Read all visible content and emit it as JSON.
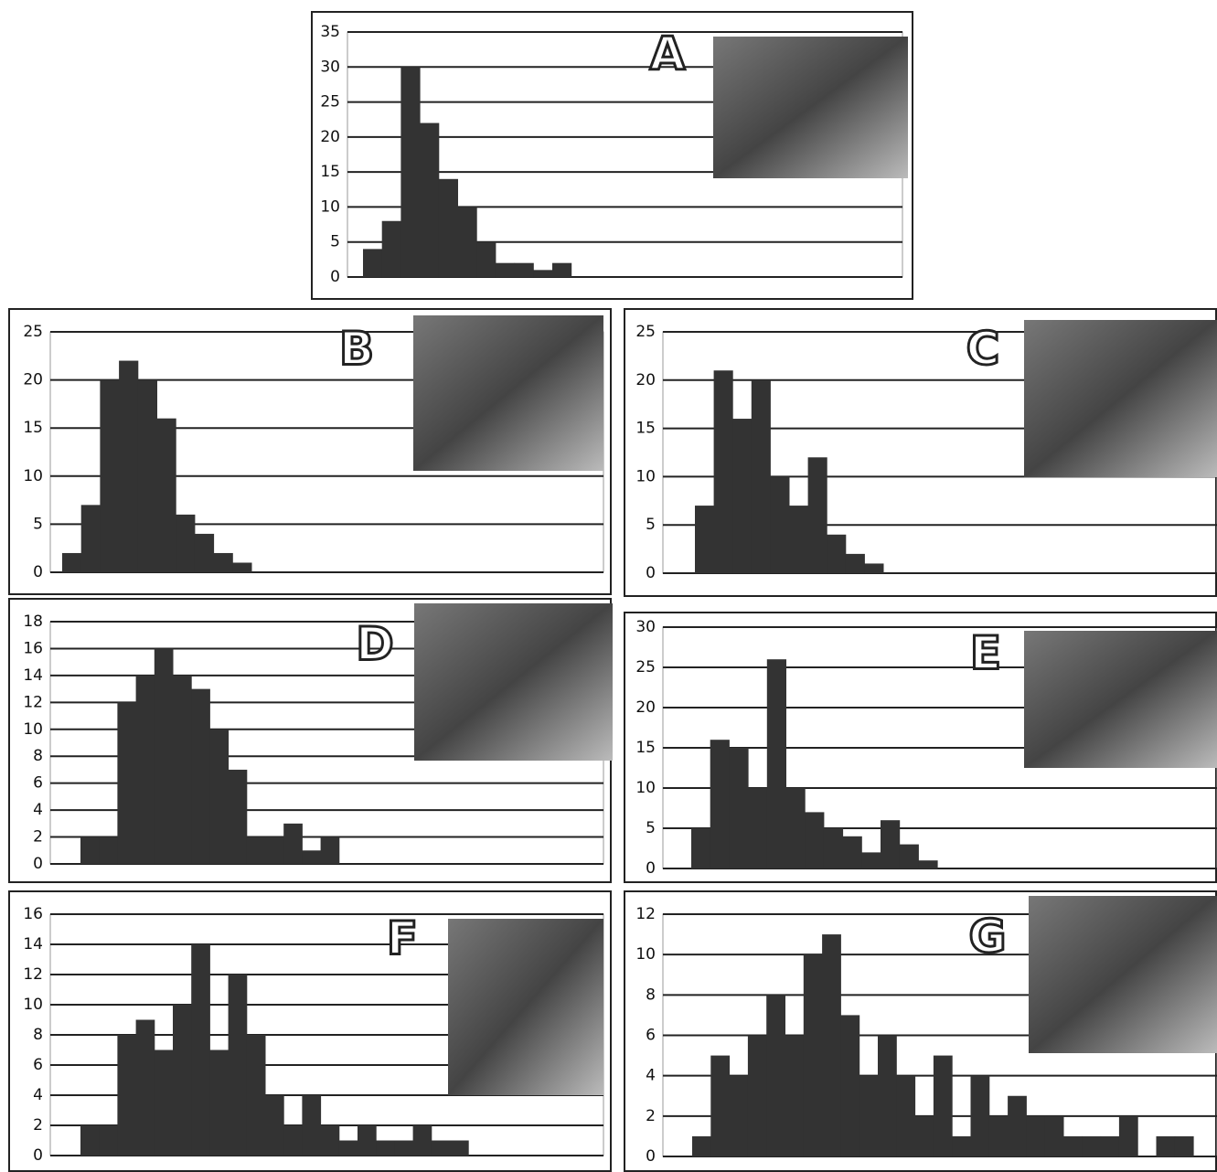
{
  "chart_data": [
    {
      "type": "bar",
      "title": "A",
      "color": "#333333",
      "grid": true,
      "categories": [
        null,
        null,
        null,
        null,
        null,
        null,
        null,
        null,
        null,
        null,
        null
      ],
      "values": [
        4,
        8,
        30,
        22,
        14,
        10,
        5,
        2,
        2,
        1,
        2
      ],
      "ylim": [
        0,
        35
      ],
      "yticks": [
        0,
        5,
        10,
        15,
        20,
        25,
        30,
        35
      ]
    },
    {
      "type": "bar",
      "title": "B",
      "color": "#333333",
      "grid": true,
      "categories": [
        null,
        null,
        null,
        null,
        null,
        null,
        null,
        null,
        null,
        null
      ],
      "values": [
        2,
        7,
        20,
        22,
        20,
        16,
        6,
        4,
        2,
        1
      ],
      "ylim": [
        0,
        25
      ],
      "yticks": [
        0,
        5,
        10,
        15,
        20,
        25
      ]
    },
    {
      "type": "bar",
      "title": "C",
      "color": "#333333",
      "grid": true,
      "categories": [
        null,
        null,
        null,
        null,
        null,
        null,
        null,
        null,
        null,
        null
      ],
      "values": [
        7,
        21,
        16,
        20,
        10,
        7,
        12,
        4,
        2,
        1
      ],
      "ylim": [
        0,
        25
      ],
      "yticks": [
        0,
        5,
        10,
        15,
        20,
        25
      ]
    },
    {
      "type": "bar",
      "title": "D",
      "color": "#333333",
      "grid": true,
      "categories": [
        null,
        null,
        null,
        null,
        null,
        null,
        null,
        null,
        null,
        null,
        null,
        null,
        null,
        null
      ],
      "values": [
        2,
        2,
        12,
        14,
        16,
        14,
        13,
        10,
        7,
        2,
        2,
        3,
        1,
        2
      ],
      "ylim": [
        0,
        18
      ],
      "yticks": [
        0,
        2,
        4,
        6,
        8,
        10,
        12,
        14,
        16,
        18
      ]
    },
    {
      "type": "bar",
      "title": "E",
      "color": "#333333",
      "grid": true,
      "categories": [
        null,
        null,
        null,
        null,
        null,
        null,
        null,
        null,
        null,
        null,
        null,
        null,
        null
      ],
      "values": [
        5,
        16,
        15,
        10,
        26,
        10,
        7,
        5,
        4,
        2,
        6,
        3,
        1
      ],
      "ylim": [
        0,
        30
      ],
      "yticks": [
        0,
        5,
        10,
        15,
        20,
        25,
        30
      ]
    },
    {
      "type": "bar",
      "title": "F",
      "color": "#333333",
      "grid": true,
      "categories": [
        null,
        null,
        null,
        null,
        null,
        null,
        null,
        null,
        null,
        null,
        null,
        null,
        null,
        null,
        null,
        null,
        null,
        null,
        null,
        null,
        null
      ],
      "values": [
        2,
        2,
        8,
        9,
        7,
        10,
        14,
        7,
        12,
        8,
        4,
        2,
        4,
        2,
        1,
        2,
        1,
        1,
        2,
        1,
        1
      ],
      "ylim": [
        0,
        16
      ],
      "yticks": [
        0,
        2,
        4,
        6,
        8,
        10,
        12,
        14,
        16
      ]
    },
    {
      "type": "bar",
      "title": "G",
      "color": "#333333",
      "grid": true,
      "categories": [
        null,
        null,
        null,
        null,
        null,
        null,
        null,
        null,
        null,
        null,
        null,
        null,
        null,
        null,
        null,
        null,
        null,
        null,
        null,
        null,
        null,
        null,
        null,
        null,
        null,
        null,
        null
      ],
      "values": [
        1,
        5,
        4,
        6,
        8,
        6,
        10,
        11,
        7,
        4,
        6,
        4,
        2,
        5,
        1,
        4,
        2,
        3,
        2,
        2,
        1,
        1,
        1,
        2,
        0,
        1,
        1
      ],
      "ylim": [
        0,
        12
      ],
      "yticks": [
        0,
        2,
        4,
        6,
        8,
        10,
        12
      ]
    }
  ]
}
